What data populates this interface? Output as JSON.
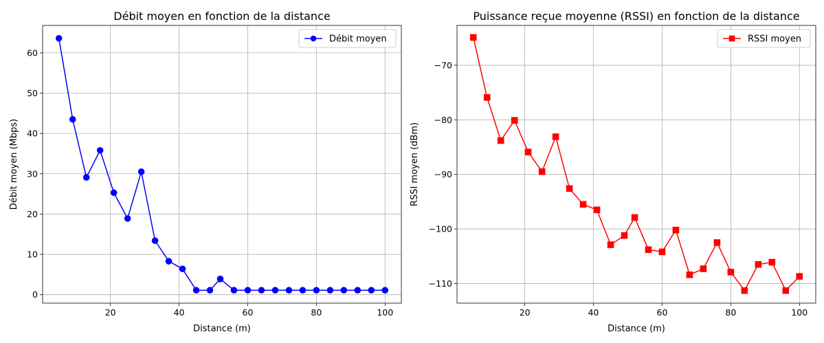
{
  "chart_data": [
    {
      "type": "line",
      "title": "Débit moyen en fonction de la distance",
      "xlabel": "Distance (m)",
      "ylabel": "Débit moyen (Mbps)",
      "xlim": [
        0.25,
        104.75
      ],
      "ylim": [
        -2.1,
        66.8
      ],
      "xticks": [
        20,
        40,
        60,
        80,
        100
      ],
      "yticks": [
        0,
        10,
        20,
        30,
        40,
        50,
        60
      ],
      "xtick_labels": [
        "20",
        "40",
        "60",
        "80",
        "100"
      ],
      "ytick_labels": [
        "0",
        "10",
        "20",
        "30",
        "40",
        "50",
        "60"
      ],
      "grid": true,
      "legend": "top-right",
      "marker": "circle",
      "color": "#0000ff",
      "series": [
        {
          "name": "Débit moyen",
          "x": [
            5,
            9,
            13,
            17,
            21,
            25,
            29,
            33,
            37,
            41,
            45,
            49,
            52,
            56,
            60,
            64,
            68,
            72,
            76,
            80,
            84,
            88,
            92,
            96,
            100
          ],
          "y": [
            63.6,
            43.5,
            29.1,
            35.8,
            25.3,
            18.9,
            30.5,
            13.4,
            8.3,
            6.4,
            1.1,
            1.1,
            3.9,
            1.1,
            1.1,
            1.1,
            1.1,
            1.1,
            1.1,
            1.1,
            1.1,
            1.1,
            1.1,
            1.1,
            1.1
          ]
        }
      ]
    },
    {
      "type": "line",
      "title": "Puissance reçue moyenne (RSSI) en fonction de la distance",
      "xlabel": "Distance (m)",
      "ylabel": "RSSI moyen (dBm)",
      "xlim": [
        0.25,
        104.75
      ],
      "ylim": [
        -113.6,
        -62.7
      ],
      "xticks": [
        20,
        40,
        60,
        80,
        100
      ],
      "yticks": [
        -110,
        -100,
        -90,
        -80,
        -70
      ],
      "xtick_labels": [
        "20",
        "40",
        "60",
        "80",
        "100"
      ],
      "ytick_labels": [
        "−110",
        "−100",
        "−90",
        "−80",
        "−70"
      ],
      "grid": true,
      "legend": "top-right",
      "marker": "square",
      "color": "#ff0000",
      "series": [
        {
          "name": "RSSI moyen",
          "x": [
            5,
            9,
            13,
            17,
            21,
            25,
            29,
            33,
            37,
            41,
            45,
            49,
            52,
            56,
            60,
            64,
            68,
            72,
            76,
            80,
            84,
            88,
            92,
            96,
            100
          ],
          "y": [
            -64.9,
            -75.9,
            -83.8,
            -80.1,
            -85.9,
            -89.5,
            -83.1,
            -92.6,
            -95.5,
            -96.5,
            -102.9,
            -101.2,
            -97.9,
            -103.8,
            -104.2,
            -100.2,
            -108.4,
            -107.3,
            -102.5,
            -107.9,
            -111.3,
            -106.5,
            -106.1,
            -111.3,
            -108.7
          ]
        }
      ]
    }
  ]
}
